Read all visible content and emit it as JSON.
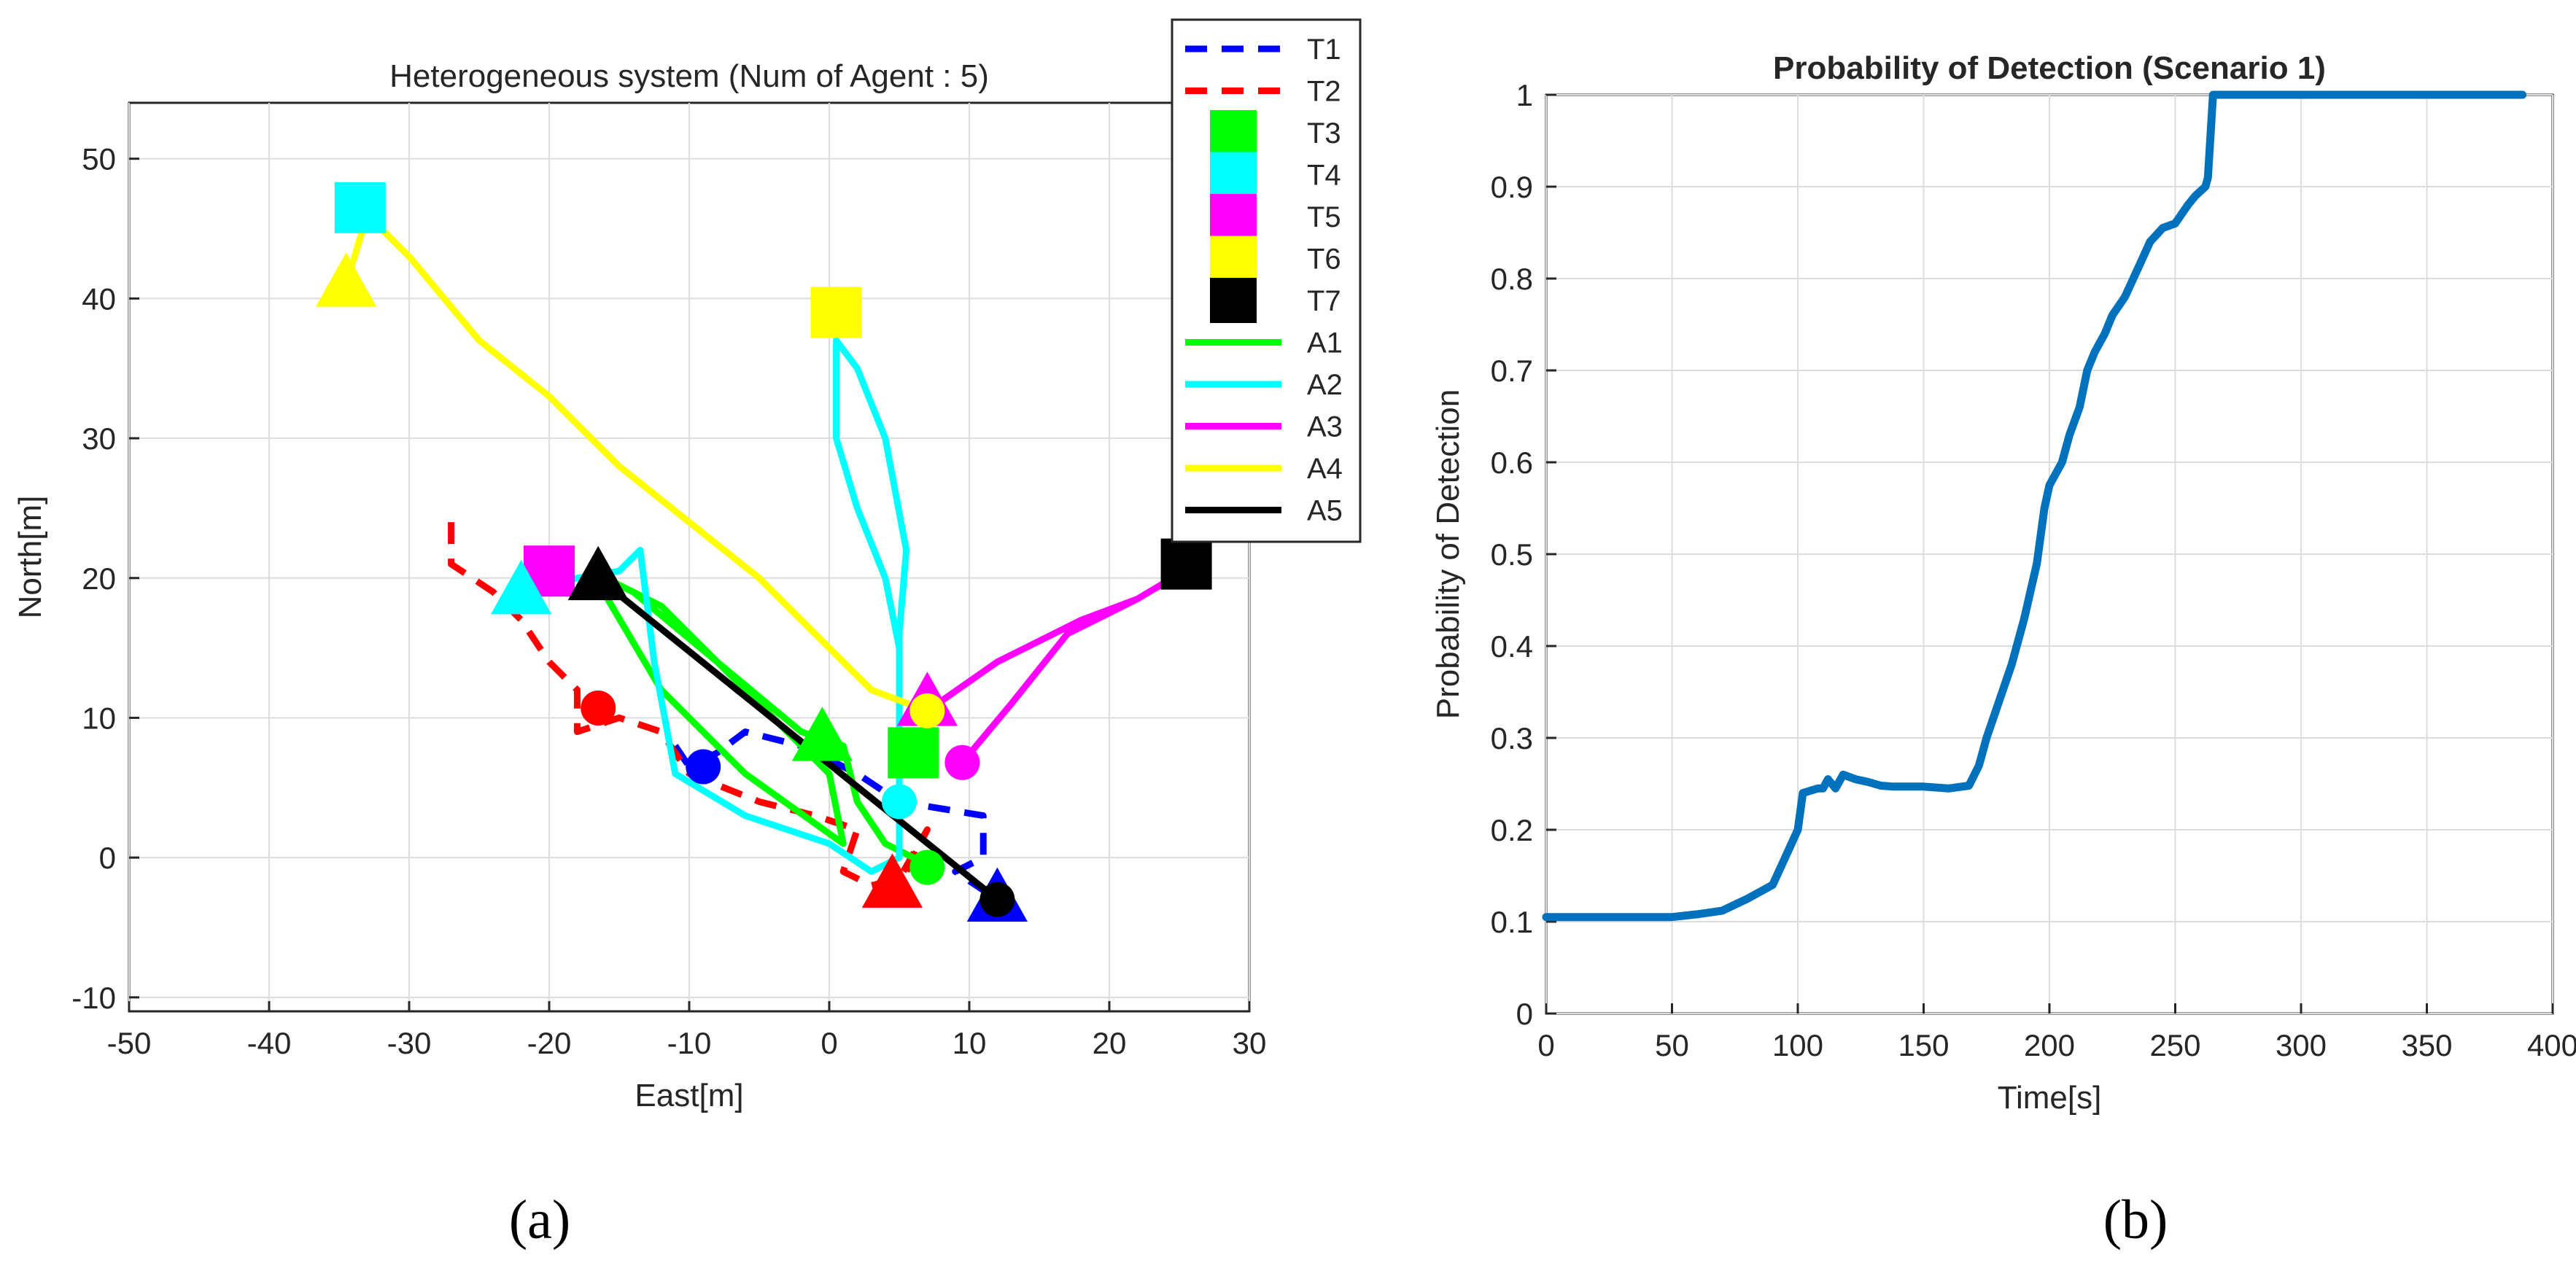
{
  "colors": {
    "T1": "#0000ff",
    "T2": "#ff0000",
    "T3": "#00ff00",
    "T4": "#00ffff",
    "T5": "#ff00ff",
    "T6": "#ffff00",
    "T7": "#000000",
    "A1": "#00ff00",
    "A2": "#00ffff",
    "A3": "#ff00ff",
    "A4": "#ffff00",
    "A5": "#000000",
    "series": "#0072bd"
  },
  "chart_data": [
    {
      "id": "a",
      "type": "line",
      "title": "Heterogeneous system (Num of Agent : 5)",
      "xlabel": "East[m]",
      "ylabel": "North[m]",
      "xlim": [
        -50,
        30
      ],
      "ylim": [
        -11,
        54
      ],
      "xticks": [
        -50,
        -40,
        -30,
        -20,
        -10,
        0,
        10,
        20,
        30
      ],
      "yticks": [
        -10,
        0,
        10,
        20,
        30,
        40,
        50
      ],
      "grid": true,
      "legend_position": "top-right",
      "legend": [
        "T1",
        "T2",
        "T3",
        "T4",
        "T5",
        "T6",
        "T7",
        "A1",
        "A2",
        "A3",
        "A4",
        "A5"
      ],
      "targets": [
        {
          "name": "T1",
          "style": "dashed",
          "path": [
            [
              -11,
              8
            ],
            [
              -10,
              6.5
            ],
            [
              -8,
              7.5
            ],
            [
              -6,
              9
            ],
            [
              -2,
              8
            ],
            [
              2,
              6
            ],
            [
              5,
              4
            ],
            [
              8,
              3.5
            ],
            [
              11,
              3
            ],
            [
              11,
              0
            ],
            [
              9,
              -1
            ],
            [
              12,
              -3
            ]
          ]
        },
        {
          "name": "T2",
          "style": "dashed",
          "path": [
            [
              -27,
              24
            ],
            [
              -27,
              21
            ],
            [
              -24,
              19
            ],
            [
              -22,
              17
            ],
            [
              -20,
              14
            ],
            [
              -18,
              12
            ],
            [
              -18,
              9
            ],
            [
              -15,
              10
            ],
            [
              -12,
              9
            ],
            [
              -10,
              6
            ],
            [
              -5,
              4
            ],
            [
              -1,
              3
            ],
            [
              2,
              2
            ],
            [
              1,
              -1
            ],
            [
              3,
              -2
            ],
            [
              5,
              -1.5
            ],
            [
              7,
              2
            ],
            [
              5,
              -2
            ]
          ]
        },
        {
          "name": "T3",
          "style": "square",
          "point": [
            6,
            7.5
          ]
        },
        {
          "name": "T4",
          "style": "square",
          "point": [
            -33.5,
            46.5
          ]
        },
        {
          "name": "T5",
          "style": "square",
          "point": [
            -20,
            20.5
          ]
        },
        {
          "name": "T6",
          "style": "square",
          "point": [
            0.5,
            39
          ]
        },
        {
          "name": "T7",
          "style": "square",
          "point": [
            25.5,
            21
          ]
        }
      ],
      "agents": [
        {
          "name": "A1",
          "start": [
            -17,
            20.5
          ],
          "end": [
            7,
            -0.5
          ],
          "path": [
            [
              -17,
              20.5
            ],
            [
              -12,
              18
            ],
            [
              -6,
              12
            ],
            [
              0,
              6
            ],
            [
              1,
              1
            ],
            [
              -6,
              6
            ],
            [
              -12,
              12
            ],
            [
              -17,
              20.5
            ],
            [
              -14,
              19
            ],
            [
              -8,
              14
            ],
            [
              -2,
              9
            ],
            [
              1,
              8
            ],
            [
              2,
              4
            ],
            [
              4,
              1
            ],
            [
              7,
              -0.5
            ]
          ]
        },
        {
          "name": "A2",
          "start": [
            -22,
            19
          ],
          "end": [
            5,
            4
          ],
          "path": [
            [
              -22,
              19
            ],
            [
              -18,
              20
            ],
            [
              -15,
              20.5
            ],
            [
              -13.5,
              22
            ],
            [
              -12.5,
              14
            ],
            [
              -11,
              6
            ],
            [
              -6,
              3
            ],
            [
              0,
              1
            ],
            [
              3,
              -1
            ],
            [
              5,
              0
            ],
            [
              5,
              3
            ],
            [
              5,
              5
            ],
            [
              5,
              10
            ],
            [
              5,
              15
            ],
            [
              4,
              20
            ],
            [
              2,
              25
            ],
            [
              0.5,
              30
            ],
            [
              0.5,
              37
            ],
            [
              2,
              35
            ],
            [
              4,
              30
            ],
            [
              5.5,
              22
            ],
            [
              5,
              16
            ],
            [
              5,
              10
            ],
            [
              5,
              4
            ]
          ]
        },
        {
          "name": "A3",
          "start": [
            7,
            10.5
          ],
          "end": [
            9.5,
            6.8
          ],
          "path": [
            [
              7,
              10.5
            ],
            [
              12,
              14
            ],
            [
              18,
              17
            ],
            [
              22,
              18.5
            ],
            [
              24.5,
              20
            ],
            [
              22,
              18.5
            ],
            [
              17,
              16
            ],
            [
              13,
              11
            ],
            [
              9.5,
              6.8
            ]
          ]
        },
        {
          "name": "A4",
          "start": [
            -34.5,
            41
          ],
          "end": [
            7,
            10.5
          ],
          "path": [
            [
              -34.5,
              41
            ],
            [
              -33,
              46
            ],
            [
              -30,
              43
            ],
            [
              -25,
              37
            ],
            [
              -20,
              33
            ],
            [
              -15,
              28
            ],
            [
              -10,
              24
            ],
            [
              -5,
              20
            ],
            [
              0,
              15
            ],
            [
              3,
              12
            ],
            [
              7,
              10.5
            ]
          ]
        },
        {
          "name": "A5",
          "start": [
            -16.5,
            20
          ],
          "end": [
            12,
            -3
          ],
          "path": [
            [
              -16.5,
              20
            ],
            [
              12,
              -3
            ]
          ]
        }
      ],
      "markers": [
        {
          "shape": "circle",
          "color": "T1",
          "point": [
            -9,
            6.5
          ]
        },
        {
          "shape": "triangle",
          "color": "T1",
          "point": [
            12,
            -3
          ]
        },
        {
          "shape": "circle",
          "color": "T2",
          "point": [
            -16.5,
            10.7
          ]
        },
        {
          "shape": "triangle",
          "color": "T2",
          "point": [
            4.5,
            -2
          ]
        },
        {
          "shape": "triangle",
          "color": "A1",
          "point": [
            -0.5,
            8.5
          ]
        },
        {
          "shape": "circle",
          "color": "A1",
          "point": [
            7,
            -0.7
          ]
        },
        {
          "shape": "triangle",
          "color": "A2",
          "point": [
            -22,
            19
          ]
        },
        {
          "shape": "circle",
          "color": "A2",
          "point": [
            5,
            4
          ]
        },
        {
          "shape": "triangle",
          "color": "A3",
          "point": [
            7,
            11
          ]
        },
        {
          "shape": "circle",
          "color": "A3",
          "point": [
            9.5,
            6.8
          ]
        },
        {
          "shape": "triangle",
          "color": "A4",
          "point": [
            -34.5,
            41
          ]
        },
        {
          "shape": "circle",
          "color": "A4",
          "point": [
            7,
            10.5
          ]
        },
        {
          "shape": "triangle",
          "color": "A5",
          "point": [
            -16.5,
            20
          ]
        },
        {
          "shape": "circle",
          "color": "A5",
          "point": [
            12,
            -3
          ]
        }
      ]
    },
    {
      "id": "b",
      "type": "line",
      "title": "Probability of Detection (Scenario 1)",
      "xlabel": "Time[s]",
      "ylabel": "Probability of Detection",
      "xlim": [
        0,
        400
      ],
      "ylim": [
        0,
        1
      ],
      "xticks": [
        0,
        50,
        100,
        150,
        200,
        250,
        300,
        350,
        400
      ],
      "yticks": [
        0,
        0.1,
        0.2,
        0.3,
        0.4,
        0.5,
        0.6,
        0.7,
        0.8,
        0.9,
        1
      ],
      "grid": true,
      "series": [
        {
          "name": "Probability of Detection",
          "x": [
            0,
            50,
            60,
            70,
            80,
            90,
            95,
            100,
            102,
            108,
            110,
            112,
            115,
            118,
            120,
            123,
            128,
            133,
            138,
            150,
            160,
            168,
            172,
            175,
            180,
            185,
            190,
            195,
            198,
            200,
            205,
            208,
            212,
            215,
            218,
            222,
            225,
            230,
            235,
            240,
            245,
            250,
            255,
            258,
            262,
            263,
            265,
            300,
            350,
            388
          ],
          "y": [
            0.105,
            0.105,
            0.108,
            0.112,
            0.125,
            0.14,
            0.17,
            0.2,
            0.24,
            0.245,
            0.245,
            0.255,
            0.245,
            0.26,
            0.258,
            0.255,
            0.252,
            0.248,
            0.247,
            0.247,
            0.245,
            0.248,
            0.27,
            0.3,
            0.34,
            0.38,
            0.43,
            0.49,
            0.55,
            0.575,
            0.6,
            0.63,
            0.66,
            0.7,
            0.72,
            0.74,
            0.76,
            0.78,
            0.81,
            0.84,
            0.855,
            0.86,
            0.88,
            0.89,
            0.9,
            0.91,
            1.0,
            1.0,
            1.0,
            1.0
          ]
        }
      ]
    }
  ],
  "panels": {
    "a": "(a)",
    "b": "(b)"
  }
}
